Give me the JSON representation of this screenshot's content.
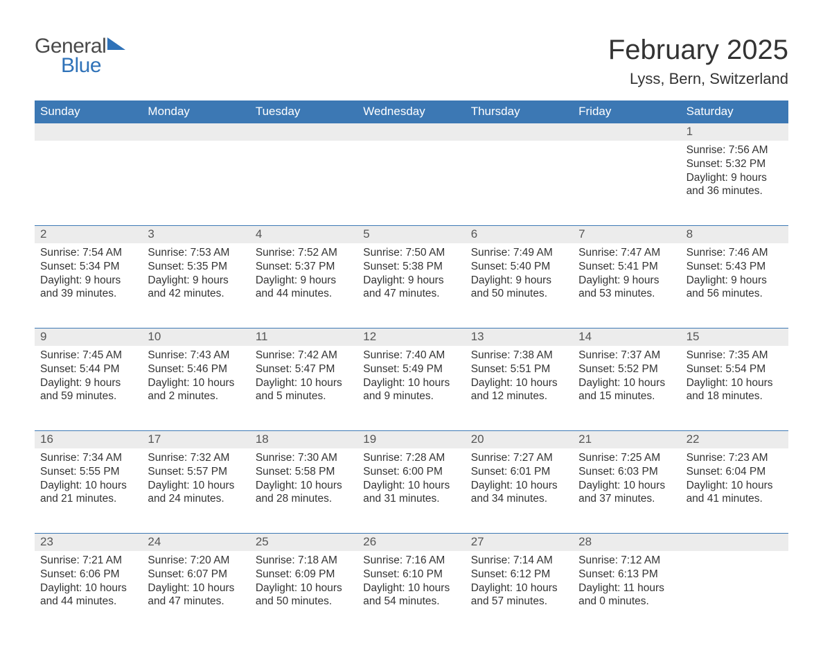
{
  "logo": {
    "word1": "General",
    "word2": "Blue"
  },
  "title": "February 2025",
  "location": "Lyss, Bern, Switzerland",
  "colors": {
    "header_bg": "#3c78b4",
    "header_text": "#ffffff",
    "daynum_bg": "#ececec",
    "daynum_text": "#555555",
    "body_text": "#333333",
    "rule": "#3c78b4",
    "logo_gray": "#4a4a4a",
    "logo_blue": "#2f72b8",
    "background": "#ffffff"
  },
  "layout": {
    "columns": 7,
    "header_fontsize": 17,
    "daynum_fontsize": 17,
    "body_fontsize": 15.5,
    "title_fontsize": 40,
    "location_fontsize": 22
  },
  "weekdays": [
    "Sunday",
    "Monday",
    "Tuesday",
    "Wednesday",
    "Thursday",
    "Friday",
    "Saturday"
  ],
  "weeks": [
    [
      null,
      null,
      null,
      null,
      null,
      null,
      {
        "n": "1",
        "sunrise": "Sunrise: 7:56 AM",
        "sunset": "Sunset: 5:32 PM",
        "daylight": "Daylight: 9 hours and 36 minutes."
      }
    ],
    [
      {
        "n": "2",
        "sunrise": "Sunrise: 7:54 AM",
        "sunset": "Sunset: 5:34 PM",
        "daylight": "Daylight: 9 hours and 39 minutes."
      },
      {
        "n": "3",
        "sunrise": "Sunrise: 7:53 AM",
        "sunset": "Sunset: 5:35 PM",
        "daylight": "Daylight: 9 hours and 42 minutes."
      },
      {
        "n": "4",
        "sunrise": "Sunrise: 7:52 AM",
        "sunset": "Sunset: 5:37 PM",
        "daylight": "Daylight: 9 hours and 44 minutes."
      },
      {
        "n": "5",
        "sunrise": "Sunrise: 7:50 AM",
        "sunset": "Sunset: 5:38 PM",
        "daylight": "Daylight: 9 hours and 47 minutes."
      },
      {
        "n": "6",
        "sunrise": "Sunrise: 7:49 AM",
        "sunset": "Sunset: 5:40 PM",
        "daylight": "Daylight: 9 hours and 50 minutes."
      },
      {
        "n": "7",
        "sunrise": "Sunrise: 7:47 AM",
        "sunset": "Sunset: 5:41 PM",
        "daylight": "Daylight: 9 hours and 53 minutes."
      },
      {
        "n": "8",
        "sunrise": "Sunrise: 7:46 AM",
        "sunset": "Sunset: 5:43 PM",
        "daylight": "Daylight: 9 hours and 56 minutes."
      }
    ],
    [
      {
        "n": "9",
        "sunrise": "Sunrise: 7:45 AM",
        "sunset": "Sunset: 5:44 PM",
        "daylight": "Daylight: 9 hours and 59 minutes."
      },
      {
        "n": "10",
        "sunrise": "Sunrise: 7:43 AM",
        "sunset": "Sunset: 5:46 PM",
        "daylight": "Daylight: 10 hours and 2 minutes."
      },
      {
        "n": "11",
        "sunrise": "Sunrise: 7:42 AM",
        "sunset": "Sunset: 5:47 PM",
        "daylight": "Daylight: 10 hours and 5 minutes."
      },
      {
        "n": "12",
        "sunrise": "Sunrise: 7:40 AM",
        "sunset": "Sunset: 5:49 PM",
        "daylight": "Daylight: 10 hours and 9 minutes."
      },
      {
        "n": "13",
        "sunrise": "Sunrise: 7:38 AM",
        "sunset": "Sunset: 5:51 PM",
        "daylight": "Daylight: 10 hours and 12 minutes."
      },
      {
        "n": "14",
        "sunrise": "Sunrise: 7:37 AM",
        "sunset": "Sunset: 5:52 PM",
        "daylight": "Daylight: 10 hours and 15 minutes."
      },
      {
        "n": "15",
        "sunrise": "Sunrise: 7:35 AM",
        "sunset": "Sunset: 5:54 PM",
        "daylight": "Daylight: 10 hours and 18 minutes."
      }
    ],
    [
      {
        "n": "16",
        "sunrise": "Sunrise: 7:34 AM",
        "sunset": "Sunset: 5:55 PM",
        "daylight": "Daylight: 10 hours and 21 minutes."
      },
      {
        "n": "17",
        "sunrise": "Sunrise: 7:32 AM",
        "sunset": "Sunset: 5:57 PM",
        "daylight": "Daylight: 10 hours and 24 minutes."
      },
      {
        "n": "18",
        "sunrise": "Sunrise: 7:30 AM",
        "sunset": "Sunset: 5:58 PM",
        "daylight": "Daylight: 10 hours and 28 minutes."
      },
      {
        "n": "19",
        "sunrise": "Sunrise: 7:28 AM",
        "sunset": "Sunset: 6:00 PM",
        "daylight": "Daylight: 10 hours and 31 minutes."
      },
      {
        "n": "20",
        "sunrise": "Sunrise: 7:27 AM",
        "sunset": "Sunset: 6:01 PM",
        "daylight": "Daylight: 10 hours and 34 minutes."
      },
      {
        "n": "21",
        "sunrise": "Sunrise: 7:25 AM",
        "sunset": "Sunset: 6:03 PM",
        "daylight": "Daylight: 10 hours and 37 minutes."
      },
      {
        "n": "22",
        "sunrise": "Sunrise: 7:23 AM",
        "sunset": "Sunset: 6:04 PM",
        "daylight": "Daylight: 10 hours and 41 minutes."
      }
    ],
    [
      {
        "n": "23",
        "sunrise": "Sunrise: 7:21 AM",
        "sunset": "Sunset: 6:06 PM",
        "daylight": "Daylight: 10 hours and 44 minutes."
      },
      {
        "n": "24",
        "sunrise": "Sunrise: 7:20 AM",
        "sunset": "Sunset: 6:07 PM",
        "daylight": "Daylight: 10 hours and 47 minutes."
      },
      {
        "n": "25",
        "sunrise": "Sunrise: 7:18 AM",
        "sunset": "Sunset: 6:09 PM",
        "daylight": "Daylight: 10 hours and 50 minutes."
      },
      {
        "n": "26",
        "sunrise": "Sunrise: 7:16 AM",
        "sunset": "Sunset: 6:10 PM",
        "daylight": "Daylight: 10 hours and 54 minutes."
      },
      {
        "n": "27",
        "sunrise": "Sunrise: 7:14 AM",
        "sunset": "Sunset: 6:12 PM",
        "daylight": "Daylight: 10 hours and 57 minutes."
      },
      {
        "n": "28",
        "sunrise": "Sunrise: 7:12 AM",
        "sunset": "Sunset: 6:13 PM",
        "daylight": "Daylight: 11 hours and 0 minutes."
      },
      null
    ]
  ]
}
